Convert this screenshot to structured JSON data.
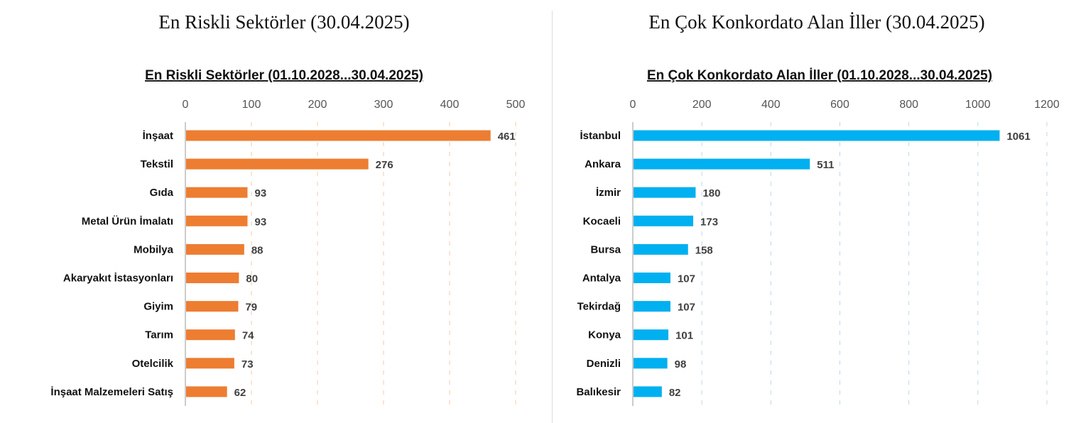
{
  "page_titles": [
    "En Riskli Sektörler (30.04.2025)",
    "En Çok Konkordato Alan İller (30.04.2025)"
  ],
  "chart_data": [
    {
      "type": "bar",
      "orientation": "horizontal",
      "title": "En Riskli Sektörler (01.10.2028...30.04.2025)",
      "categories": [
        "İnşaat",
        "Tekstil",
        "Gıda",
        "Metal Ürün İmalatı",
        "Mobilya",
        "Akaryakıt İstasyonları",
        "Giyim",
        "Tarım",
        "Otelcilik",
        "İnşaat Malzemeleri Satış"
      ],
      "values": [
        461,
        276,
        93,
        93,
        88,
        80,
        79,
        74,
        73,
        62
      ],
      "xlim": [
        0,
        500
      ],
      "ticks": [
        0,
        100,
        200,
        300,
        400,
        500
      ],
      "xlabel": "",
      "ylabel": "",
      "grid": true,
      "color": "#ED7D31",
      "grid_color": "#F4C9A8"
    },
    {
      "type": "bar",
      "orientation": "horizontal",
      "title": "En Çok Konkordato Alan İller (01.10.2028...30.04.2025)",
      "categories": [
        "İstanbul",
        "Ankara",
        "İzmir",
        "Kocaeli",
        "Bursa",
        "Antalya",
        "Tekirdağ",
        "Konya",
        "Denizli",
        "Balıkesir"
      ],
      "values": [
        1061,
        511,
        180,
        173,
        158,
        107,
        107,
        101,
        98,
        82
      ],
      "xlim": [
        0,
        1200
      ],
      "ticks": [
        0,
        200,
        400,
        600,
        800,
        1000,
        1200
      ],
      "xlabel": "",
      "ylabel": "",
      "grid": true,
      "color": "#00B0F0",
      "grid_color": "#BFD8EA"
    }
  ]
}
